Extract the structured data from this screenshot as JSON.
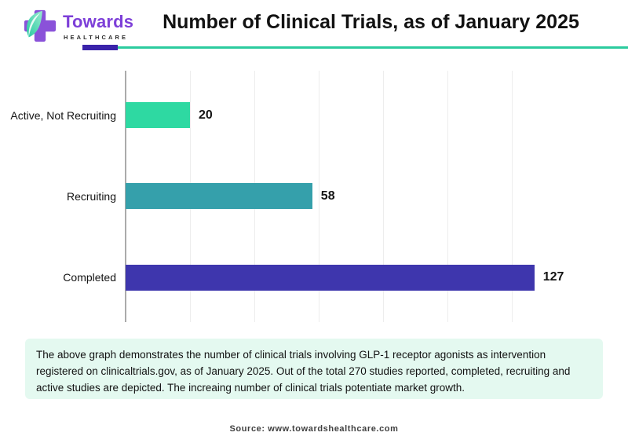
{
  "header": {
    "logo": {
      "brand": "Towards",
      "sub": "HEALTHCARE"
    },
    "title": "Number of Clinical Trials, as of January 2025"
  },
  "colors": {
    "logo_purple": "#8a52d9",
    "logo_leaf_teal": "#2bd3a8",
    "rule_purple": "#3a23aa",
    "rule_teal": "#2bcb9e",
    "caption_bg": "#e4f9f0",
    "axis_gray": "#ababab",
    "grid_gray": "#ededed"
  },
  "chart_data": {
    "type": "bar",
    "orientation": "horizontal",
    "title": "Number of Clinical Trials, as of January 2025",
    "categories": [
      "Active, Not Recruiting",
      "Recruiting",
      "Completed"
    ],
    "values": [
      20,
      58,
      127
    ],
    "value_labels": [
      "20",
      "58",
      "127"
    ],
    "bar_colors": [
      "#2ed9a2",
      "#35a0ab",
      "#3e36ad"
    ],
    "xlabel": "",
    "ylabel": "",
    "xlim": [
      0,
      148
    ],
    "gridline_interval": 20,
    "grid": true,
    "legend": false,
    "total_studies_note": 270
  },
  "caption": {
    "text": "The above graph demonstrates the number of clinical trials involving GLP-1 receptor agonists as intervention registered on clinicaltrials.gov, as of January 2025. Out of the total 270 studies reported, completed, recruiting and active studies are depicted. The increaing number of clinical trials potentiate market growth."
  },
  "source": {
    "text": "Source: www.towardshealthcare.com"
  }
}
